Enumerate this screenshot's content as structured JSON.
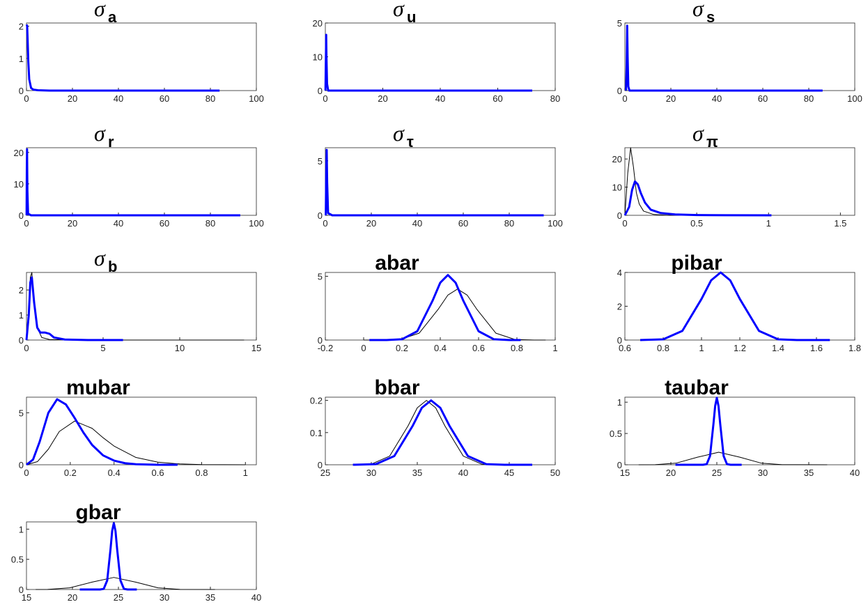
{
  "chart_data": [
    {
      "type": "line",
      "title_symbol": "σ",
      "title": "a",
      "xlim": [
        0,
        100
      ],
      "ylim": [
        0,
        2.1
      ],
      "xticks": [
        0,
        20,
        40,
        60,
        80,
        100
      ],
      "yticks": [
        0,
        1,
        2
      ],
      "series": [
        {
          "color": "#0000ff",
          "x": [
            0.1,
            0.3,
            0.5,
            0.8,
            1.2,
            2,
            3,
            5,
            10,
            30,
            84
          ],
          "values": [
            2.05,
            2.0,
            1.6,
            0.9,
            0.35,
            0.08,
            0.03,
            0.01,
            0,
            0,
            0
          ]
        }
      ]
    },
    {
      "type": "line",
      "title_symbol": "σ",
      "title": "u",
      "xlim": [
        0,
        80
      ],
      "ylim": [
        0,
        20
      ],
      "xticks": [
        0,
        20,
        40,
        60,
        80
      ],
      "yticks": [
        0,
        10,
        20
      ],
      "series": [
        {
          "color": "#0000ff",
          "x": [
            0.05,
            0.2,
            0.3,
            0.4,
            0.6,
            1,
            5,
            72
          ],
          "values": [
            0,
            10,
            16.5,
            10,
            2,
            0,
            0,
            0
          ]
        }
      ]
    },
    {
      "type": "line",
      "title_symbol": "σ",
      "title": "s",
      "xlim": [
        0,
        100
      ],
      "ylim": [
        0,
        5
      ],
      "xticks": [
        0,
        20,
        40,
        60,
        80,
        100
      ],
      "yticks": [
        0,
        5
      ],
      "series": [
        {
          "color": "#0000ff",
          "x": [
            0.5,
            0.8,
            1.0,
            1.2,
            1.5,
            2,
            10,
            86
          ],
          "values": [
            0,
            2,
            4.8,
            2.5,
            0.3,
            0,
            0,
            0
          ]
        }
      ]
    },
    {
      "type": "line",
      "title_symbol": "σ",
      "title": "r",
      "xlim": [
        0,
        100
      ],
      "ylim": [
        0,
        21.5
      ],
      "xticks": [
        0,
        20,
        40,
        60,
        80,
        100
      ],
      "yticks": [
        0,
        10,
        20
      ],
      "series": [
        {
          "color": "#0000ff",
          "x": [
            0.05,
            0.15,
            0.25,
            0.4,
            0.7,
            2,
            93
          ],
          "values": [
            0,
            15,
            21,
            8,
            0.5,
            0,
            0
          ]
        }
      ]
    },
    {
      "type": "line",
      "title_symbol": "σ",
      "title": "τ",
      "xlim": [
        0,
        100
      ],
      "ylim": [
        0,
        6.2
      ],
      "xticks": [
        0,
        20,
        40,
        60,
        80,
        100
      ],
      "yticks": [
        0,
        5
      ],
      "series": [
        {
          "color": "#0000ff",
          "x": [
            0.2,
            0.4,
            0.6,
            0.8,
            1.2,
            3,
            95
          ],
          "values": [
            0,
            4,
            6,
            3,
            0.2,
            0,
            0
          ]
        }
      ]
    },
    {
      "type": "line",
      "title_symbol": "σ",
      "title": "π",
      "xlim": [
        0,
        1.6
      ],
      "ylim": [
        0,
        24
      ],
      "xticks": [
        0,
        0.5,
        1,
        1.5
      ],
      "yticks": [
        0,
        10,
        20
      ],
      "series": [
        {
          "color": "#000000",
          "x": [
            0,
            0.02,
            0.04,
            0.06,
            0.08,
            0.1,
            0.13,
            0.2,
            0.3,
            0.5
          ],
          "values": [
            0,
            15,
            24,
            17,
            8,
            4,
            1.5,
            0.3,
            0,
            0
          ]
        },
        {
          "color": "#0000ff",
          "x": [
            0,
            0.03,
            0.05,
            0.07,
            0.09,
            0.11,
            0.14,
            0.18,
            0.25,
            0.35,
            0.5,
            0.7,
            1.02
          ],
          "values": [
            0,
            3,
            9,
            12,
            11,
            8,
            4.5,
            2,
            0.8,
            0.3,
            0.1,
            0.03,
            0
          ]
        }
      ]
    },
    {
      "type": "line",
      "title_symbol": "σ",
      "title": "b",
      "xlim": [
        0,
        15
      ],
      "ylim": [
        0,
        2.7
      ],
      "xticks": [
        0,
        5,
        10,
        15
      ],
      "yticks": [
        0,
        1,
        2
      ],
      "series": [
        {
          "color": "#000000",
          "x": [
            0,
            0.15,
            0.25,
            0.35,
            0.5,
            0.7,
            1,
            1.5,
            3,
            14.2
          ],
          "values": [
            0,
            1.2,
            2.5,
            2.7,
            1.6,
            0.5,
            0.1,
            0.02,
            0,
            0
          ]
        },
        {
          "color": "#0000ff",
          "x": [
            0,
            0.15,
            0.25,
            0.35,
            0.5,
            0.7,
            0.9,
            1.2,
            1.5,
            1.8,
            2.5,
            4,
            6.3
          ],
          "values": [
            0,
            1.0,
            2.3,
            2.5,
            1.5,
            0.5,
            0.3,
            0.3,
            0.25,
            0.1,
            0.02,
            0,
            0
          ]
        }
      ]
    },
    {
      "type": "line",
      "title": "abar",
      "xlim": [
        -0.2,
        1
      ],
      "ylim": [
        0,
        5.3
      ],
      "xticks": [
        -0.2,
        0,
        0.2,
        0.4,
        0.6,
        0.8,
        1
      ],
      "yticks": [
        0,
        5
      ],
      "series": [
        {
          "color": "#000000",
          "x": [
            0,
            0.09,
            0.19,
            0.29,
            0.39,
            0.44,
            0.49,
            0.54,
            0.59,
            0.69,
            0.79,
            0.89,
            0.95
          ],
          "values": [
            0,
            0,
            0.04,
            0.54,
            2.43,
            3.53,
            4,
            3.53,
            2.43,
            0.54,
            0.04,
            0,
            0
          ]
        },
        {
          "color": "#0000ff",
          "x": [
            0.03,
            0.12,
            0.2,
            0.28,
            0.36,
            0.4,
            0.44,
            0.48,
            0.52,
            0.6,
            0.68,
            0.76,
            0.82
          ],
          "values": [
            0,
            0,
            0.06,
            0.69,
            3.09,
            4.5,
            5.1,
            4.5,
            3.09,
            0.69,
            0.06,
            0,
            0
          ]
        }
      ]
    },
    {
      "type": "line",
      "title": "pibar",
      "xlim": [
        0.6,
        1.8
      ],
      "ylim": [
        0,
        4
      ],
      "xticks": [
        0.6,
        0.8,
        1,
        1.2,
        1.4,
        1.6,
        1.8
      ],
      "yticks": [
        0,
        2,
        4
      ],
      "series": [
        {
          "color": "#000000",
          "x": [
            0.7,
            0.8,
            0.9,
            1.0,
            1.05,
            1.1,
            1.15,
            1.2,
            1.3,
            1.4,
            1.5
          ],
          "values": [
            0,
            0.04,
            0.54,
            2.43,
            3.53,
            4,
            3.53,
            2.43,
            0.54,
            0.04,
            0
          ]
        },
        {
          "color": "#0000ff",
          "x": [
            0.68,
            0.8,
            0.9,
            1.0,
            1.05,
            1.1,
            1.15,
            1.2,
            1.3,
            1.4,
            1.5,
            1.67
          ],
          "values": [
            0,
            0.04,
            0.54,
            2.43,
            3.53,
            4,
            3.53,
            2.43,
            0.54,
            0.04,
            0,
            0
          ]
        }
      ]
    },
    {
      "type": "line",
      "title": "mubar",
      "xlim": [
        0,
        1.05
      ],
      "ylim": [
        0,
        6.5
      ],
      "xticks": [
        0,
        0.2,
        0.4,
        0.6,
        0.8,
        1
      ],
      "yticks": [
        0,
        5
      ],
      "series": [
        {
          "color": "#000000",
          "x": [
            0,
            0.05,
            0.1,
            0.15,
            0.22,
            0.3,
            0.35,
            0.4,
            0.5,
            0.6,
            0.7,
            0.8,
            1.0
          ],
          "values": [
            0,
            0.3,
            1.5,
            3.2,
            4.2,
            3.5,
            2.6,
            1.8,
            0.7,
            0.25,
            0.08,
            0.02,
            0
          ]
        },
        {
          "color": "#0000ff",
          "x": [
            0,
            0.03,
            0.06,
            0.1,
            0.14,
            0.18,
            0.22,
            0.26,
            0.3,
            0.35,
            0.4,
            0.45,
            0.5,
            0.6,
            0.69
          ],
          "values": [
            0,
            0.5,
            2.2,
            5.0,
            6.3,
            5.8,
            4.5,
            3.1,
            1.9,
            0.9,
            0.4,
            0.15,
            0.05,
            0,
            0
          ]
        }
      ]
    },
    {
      "type": "line",
      "title": "bbar",
      "xlim": [
        25,
        50
      ],
      "ylim": [
        0,
        0.21
      ],
      "xticks": [
        25,
        30,
        35,
        40,
        45,
        50
      ],
      "yticks": [
        0,
        0.1,
        0.2
      ],
      "series": [
        {
          "color": "#000000",
          "x": [
            28,
            30,
            32,
            34,
            35,
            36,
            37,
            38,
            40,
            42,
            44
          ],
          "values": [
            0,
            0.002,
            0.027,
            0.121,
            0.177,
            0.2,
            0.177,
            0.121,
            0.027,
            0.002,
            0
          ]
        },
        {
          "color": "#0000ff",
          "x": [
            28,
            30.5,
            32.5,
            34.5,
            35.5,
            36.5,
            37.5,
            38.5,
            40.5,
            42.5,
            44.5,
            47.5
          ],
          "values": [
            0,
            0.002,
            0.027,
            0.121,
            0.177,
            0.2,
            0.177,
            0.121,
            0.027,
            0.002,
            0,
            0
          ]
        }
      ]
    },
    {
      "type": "line",
      "title": "taubar",
      "xlim": [
        15,
        40
      ],
      "ylim": [
        0,
        1.08
      ],
      "xticks": [
        15,
        20,
        25,
        30,
        35,
        40
      ],
      "yticks": [
        0,
        0.5,
        1
      ],
      "series": [
        {
          "color": "#000000",
          "x": [
            16.5,
            18.3,
            20.6,
            22.9,
            25.2,
            27.5,
            29.8,
            32.1,
            37
          ],
          "values": [
            0,
            0.002,
            0.027,
            0.121,
            0.2,
            0.121,
            0.027,
            0.002,
            0
          ]
        },
        {
          "color": "#0000ff",
          "x": [
            20.5,
            23.5,
            23.9,
            24.26,
            24.63,
            24.82,
            25,
            25.18,
            25.37,
            25.74,
            26.1,
            26.5,
            27.7
          ],
          "values": [
            0,
            0,
            0.01,
            0.14,
            0.65,
            0.94,
            1.07,
            0.94,
            0.65,
            0.14,
            0.01,
            0,
            0
          ]
        }
      ]
    },
    {
      "type": "line",
      "title": "gbar",
      "xlim": [
        15,
        40
      ],
      "ylim": [
        0,
        1.12
      ],
      "xticks": [
        15,
        20,
        25,
        30,
        35,
        40
      ],
      "yticks": [
        0,
        0.5,
        1
      ],
      "series": [
        {
          "color": "#000000",
          "x": [
            16,
            17.3,
            19.7,
            22.1,
            24.5,
            26.9,
            29.3,
            31.7,
            35.5
          ],
          "values": [
            0,
            0.002,
            0.027,
            0.121,
            0.2,
            0.121,
            0.027,
            0.002,
            0
          ]
        },
        {
          "color": "#0000ff",
          "x": [
            20.8,
            23,
            23.4,
            23.78,
            24.14,
            24.32,
            24.5,
            24.68,
            24.86,
            25.22,
            25.6,
            26,
            27
          ],
          "values": [
            0,
            0,
            0.01,
            0.15,
            0.67,
            0.97,
            1.1,
            0.97,
            0.67,
            0.15,
            0.01,
            0,
            0
          ]
        }
      ]
    }
  ]
}
